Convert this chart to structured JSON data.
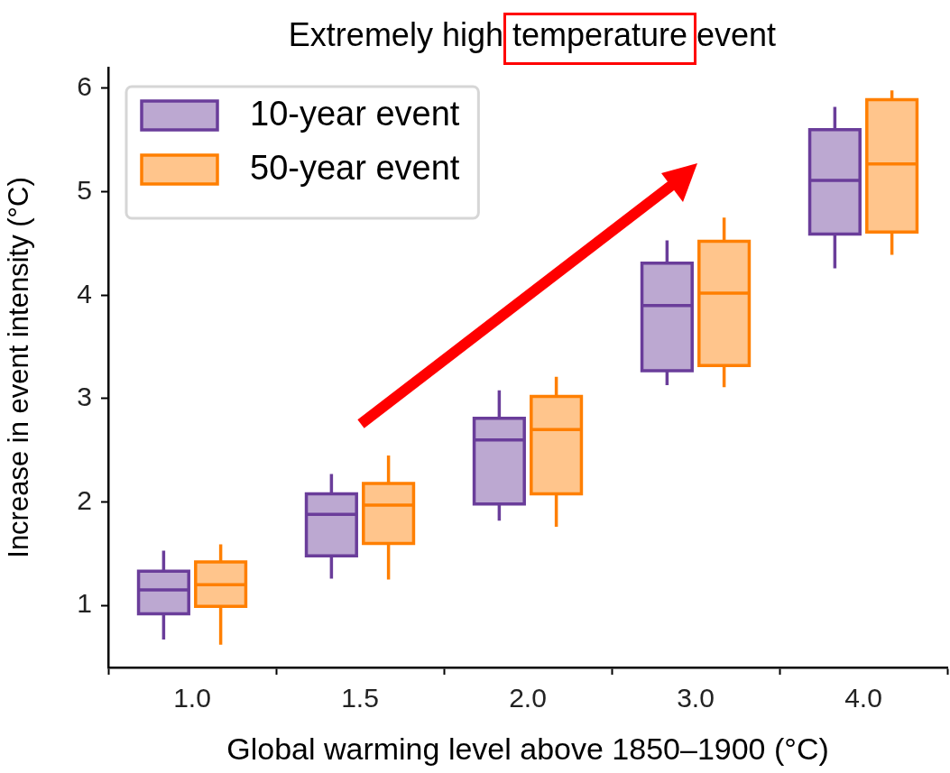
{
  "chart_data": {
    "type": "box",
    "title": "Extremely high temperature event",
    "xlabel": "Global warming level above 1850–1900 (°C)",
    "ylabel": "Increase in event intensity (°C)",
    "categories": [
      "1.0",
      "1.5",
      "2.0",
      "3.0",
      "4.0"
    ],
    "ylim": [
      0.4,
      6.2
    ],
    "yticks": [
      1,
      2,
      3,
      4,
      5,
      6
    ],
    "grid": false,
    "legend": "top left",
    "series": [
      {
        "name": "10-year event",
        "color": "#6a3d9a",
        "boxes": [
          {
            "low": 0.67,
            "q1": 0.92,
            "median": 1.15,
            "q3": 1.33,
            "high": 1.53
          },
          {
            "low": 1.26,
            "q1": 1.48,
            "median": 1.88,
            "q3": 2.08,
            "high": 2.27
          },
          {
            "low": 1.82,
            "q1": 1.98,
            "median": 2.6,
            "q3": 2.81,
            "high": 3.08
          },
          {
            "low": 3.13,
            "q1": 3.27,
            "median": 3.9,
            "q3": 4.31,
            "high": 4.53
          },
          {
            "low": 4.26,
            "q1": 4.59,
            "median": 5.11,
            "q3": 5.6,
            "high": 5.82
          }
        ]
      },
      {
        "name": "50-year event",
        "color": "#ff7f00",
        "boxes": [
          {
            "low": 0.62,
            "q1": 0.99,
            "median": 1.2,
            "q3": 1.42,
            "high": 1.59
          },
          {
            "low": 1.25,
            "q1": 1.6,
            "median": 1.97,
            "q3": 2.18,
            "high": 2.45
          },
          {
            "low": 1.76,
            "q1": 2.08,
            "median": 2.7,
            "q3": 3.02,
            "high": 3.21
          },
          {
            "low": 3.11,
            "q1": 3.32,
            "median": 4.02,
            "q3": 4.52,
            "high": 4.75
          },
          {
            "low": 4.39,
            "q1": 4.61,
            "median": 5.27,
            "q3": 5.89,
            "high": 5.98
          }
        ]
      }
    ]
  }
}
